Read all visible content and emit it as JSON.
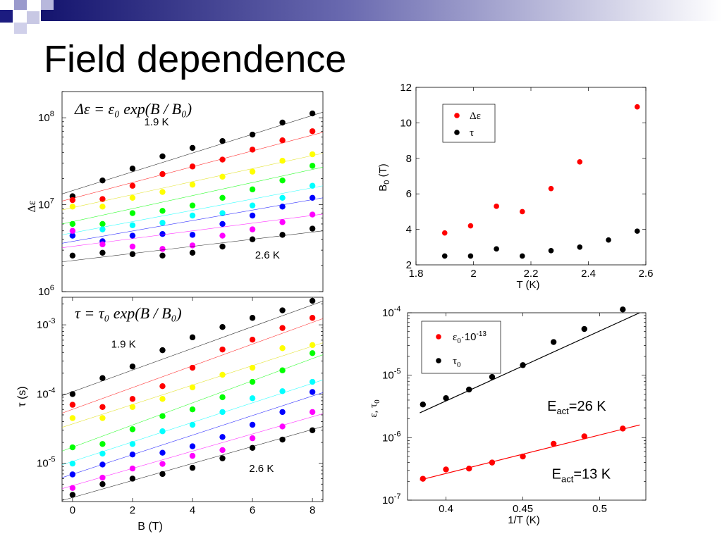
{
  "slide": {
    "title": "Field dependence"
  },
  "colors": [
    "#000000",
    "#ff0000",
    "#ffff00",
    "#00ff00",
    "#00ffff",
    "#0000ff",
    "#ff00ff",
    "#000000"
  ],
  "chart_data": [
    {
      "id": "eps-vs-B",
      "type": "scatter",
      "y_scale": "log",
      "xlim": [
        -0.35,
        8.35
      ],
      "ylim": [
        1000000,
        200000000
      ],
      "x_ticks": [],
      "y_ticks": [
        {
          "value": 100000000,
          "base": "10",
          "exp": "8"
        },
        {
          "value": 10000000,
          "base": "10",
          "exp": "7"
        },
        {
          "value": 1000000,
          "base": "10",
          "exp": "6"
        }
      ],
      "ylabel": "Δε",
      "formula": "Δε = ε₀ exp(B / B₀)",
      "annotations": [
        {
          "text": "1.9 K",
          "x": 2.8,
          "y": 82000000
        },
        {
          "text": "2.6 K",
          "x": 6.5,
          "y": 2400000
        }
      ],
      "x": [
        0,
        1,
        2,
        3,
        4,
        5,
        6,
        7,
        8
      ],
      "series": [
        {
          "color": "#000000",
          "values": [
            12500000,
            19000000,
            26000000,
            36000000,
            45000000,
            54000000,
            64000000,
            88000000,
            112000000
          ],
          "fit": [
            13300000,
            116000000
          ]
        },
        {
          "color": "#ff0000",
          "values": [
            11300000,
            11600000,
            16500000,
            22500000,
            27500000,
            33000000,
            43000000,
            55000000,
            70000000
          ],
          "fit": [
            11000000,
            68000000
          ]
        },
        {
          "color": "#ffff00",
          "values": [
            9500000,
            9500000,
            12000000,
            14000000,
            17000000,
            21000000,
            24000000,
            32000000,
            38000000
          ],
          "fit": [
            8700000,
            39000000
          ]
        },
        {
          "color": "#00ff00",
          "values": [
            6000000,
            6000000,
            8000000,
            8500000,
            9800000,
            12000000,
            15000000,
            19000000,
            28000000
          ],
          "fit": [
            6000000,
            27000000
          ]
        },
        {
          "color": "#00ffff",
          "values": [
            4400000,
            5200000,
            5800000,
            6200000,
            7500000,
            8000000,
            9800000,
            12000000,
            16500000
          ],
          "fit": [
            4500000,
            16500000
          ]
        },
        {
          "color": "#0000ff",
          "values": [
            4400000,
            3800000,
            4400000,
            4600000,
            4500000,
            6000000,
            7500000,
            9500000,
            12000000
          ],
          "fit": [
            3600000,
            12000000
          ]
        },
        {
          "color": "#ff00ff",
          "values": [
            5000000,
            3500000,
            3300000,
            3100000,
            3400000,
            4400000,
            5200000,
            6300000,
            7700000
          ],
          "fit": [
            3200000,
            7800000
          ]
        },
        {
          "color": "#000000",
          "values": [
            2600000,
            2800000,
            2700000,
            2600000,
            2800000,
            3300000,
            4000000,
            4500000,
            5300000
          ],
          "fit": [
            2200000,
            5000000
          ]
        }
      ]
    },
    {
      "id": "tau-vs-B",
      "type": "scatter",
      "y_scale": "log",
      "xlim": [
        -0.35,
        8.35
      ],
      "ylim": [
        2.8e-06,
        0.0025
      ],
      "x_ticks": [
        {
          "value": 0,
          "label": "0"
        },
        {
          "value": 2,
          "label": "2"
        },
        {
          "value": 4,
          "label": "4"
        },
        {
          "value": 6,
          "label": "6"
        },
        {
          "value": 8,
          "label": "8"
        }
      ],
      "y_ticks": [
        {
          "value": 0.001,
          "base": "10",
          "exp": "-3"
        },
        {
          "value": 0.0001,
          "base": "10",
          "exp": "-4"
        },
        {
          "value": 1e-05,
          "base": "10",
          "exp": "-5"
        }
      ],
      "xlabel": "B (T)",
      "ylabel": "τ (s)",
      "formula": "τ = τ₀ exp(B / B₀)",
      "annotations": [
        {
          "text": "1.9 K",
          "x": 1.7,
          "y": 0.00047
        },
        {
          "text": "2.6 K",
          "x": 6.3,
          "y": 7.5e-06
        }
      ],
      "x": [
        0,
        1,
        2,
        3,
        4,
        5,
        6,
        7,
        8
      ],
      "series": [
        {
          "color": "#000000",
          "values": [
            0.0001,
            0.00017,
            0.00025,
            0.00043,
            0.00066,
            0.00093,
            0.00126,
            0.00162,
            0.00222
          ],
          "fit": [
            9.5e-05,
            0.0022
          ]
        },
        {
          "color": "#ff0000",
          "values": [
            7e-05,
            6.5e-05,
            8.5e-05,
            0.00013,
            0.00024,
            0.00044,
            0.00061,
            0.0009,
            0.00126
          ],
          "fit": [
            5.3e-05,
            0.00123
          ]
        },
        {
          "color": "#ffff00",
          "values": [
            4.5e-05,
            4.5e-05,
            6.5e-05,
            8.5e-05,
            0.000125,
            0.00019,
            0.00024,
            0.00046,
            0.00051
          ],
          "fit": [
            3.3e-05,
            0.00055
          ]
        },
        {
          "color": "#00ff00",
          "values": [
            1.7e-05,
            1.9e-05,
            3.1e-05,
            4.8e-05,
            6e-05,
            9e-05,
            0.00015,
            0.00022,
            0.00039
          ],
          "fit": [
            1.5e-05,
            0.00037
          ]
        },
        {
          "color": "#00ffff",
          "values": [
            9.9e-06,
            1.38e-05,
            1.9e-05,
            2.9e-05,
            3.6e-05,
            5.5e-05,
            8.7e-05,
            0.00011,
            0.00015
          ],
          "fit": [
            9.5e-06,
            0.00016
          ]
        },
        {
          "color": "#0000ff",
          "values": [
            6.9e-06,
            9.6e-06,
            1.34e-05,
            1.42e-05,
            1.76e-05,
            2.4e-05,
            3.6e-05,
            5.5e-05,
            0.000107
          ],
          "fit": [
            6.2e-06,
            0.000105
          ]
        },
        {
          "color": "#ff00ff",
          "values": [
            4.4e-06,
            6.2e-06,
            8.4e-06,
            9.8e-06,
            1.28e-05,
            1.55e-05,
            2.3e-05,
            3.4e-05,
            5.5e-05
          ],
          "fit": [
            4.3e-06,
            5.2e-05
          ]
        },
        {
          "color": "#000000",
          "values": [
            3.5e-06,
            5e-06,
            6e-06,
            7e-06,
            8.6e-06,
            1.18e-05,
            1.67e-05,
            2.2e-05,
            3e-05
          ],
          "fit": [
            2.9e-06,
            3.4e-05
          ]
        }
      ]
    },
    {
      "id": "B0-vs-T",
      "type": "scatter",
      "y_scale": "linear",
      "xlim": [
        1.8,
        2.6
      ],
      "ylim": [
        2,
        12
      ],
      "x_ticks": [
        {
          "value": 1.8,
          "label": "1.8"
        },
        {
          "value": 2.0,
          "label": "2"
        },
        {
          "value": 2.2,
          "label": "2.2"
        },
        {
          "value": 2.4,
          "label": "2.4"
        },
        {
          "value": 2.6,
          "label": "2.6"
        }
      ],
      "y_ticks": [
        {
          "value": 2,
          "label": "2"
        },
        {
          "value": 4,
          "label": "4"
        },
        {
          "value": 6,
          "label": "6"
        },
        {
          "value": 8,
          "label": "8"
        },
        {
          "value": 10,
          "label": "10"
        },
        {
          "value": 12,
          "label": "12"
        }
      ],
      "xlabel": "T (K)",
      "ylabel_main": "B",
      "ylabel_sub": "0",
      "ylabel_tail": " (T)",
      "legend": {
        "position": "top-left",
        "entries": [
          {
            "label": "Δε",
            "color": "#ff0000"
          },
          {
            "label": "τ",
            "color": "#000000"
          }
        ]
      },
      "series": [
        {
          "name": "Δε",
          "color": "#ff0000",
          "x": [
            1.9,
            1.99,
            2.08,
            2.17,
            2.27,
            2.37,
            2.57
          ],
          "y": [
            3.8,
            4.2,
            5.3,
            5.0,
            6.3,
            7.8,
            10.9
          ]
        },
        {
          "name": "τ",
          "color": "#000000",
          "x": [
            1.9,
            1.99,
            2.08,
            2.17,
            2.27,
            2.37,
            2.47,
            2.57
          ],
          "y": [
            2.5,
            2.5,
            2.9,
            2.5,
            2.8,
            3.0,
            3.4,
            3.9
          ]
        }
      ]
    },
    {
      "id": "eps0-tau0-vs-invT",
      "type": "scatter",
      "y_scale": "log",
      "xlim": [
        0.375,
        0.53
      ],
      "ylim": [
        1e-07,
        0.0001
      ],
      "x_ticks": [
        {
          "value": 0.4,
          "label": "0.4"
        },
        {
          "value": 0.45,
          "label": "0.45"
        },
        {
          "value": 0.5,
          "label": "0.5"
        }
      ],
      "y_ticks": [
        {
          "value": 0.0001,
          "base": "10",
          "exp": "-4"
        },
        {
          "value": 1e-05,
          "base": "10",
          "exp": "-5"
        },
        {
          "value": 1e-06,
          "base": "10",
          "exp": "-6"
        },
        {
          "value": 1e-07,
          "base": "10",
          "exp": "-7"
        }
      ],
      "xlabel": "1/T (K)",
      "ylabel": "ε, τ",
      "ylabel_sub": "0",
      "legend": {
        "position": "top-left",
        "entries": [
          {
            "label": "ε",
            "sub": "0",
            "tail": "·10",
            "sup": "-13",
            "color": "#ff0000"
          },
          {
            "label": "τ",
            "sub": "0",
            "tail": "",
            "sup": "",
            "color": "#000000"
          }
        ]
      },
      "annotations": [
        {
          "text_main": "E",
          "text_sub": "act",
          "text_tail": "=26 K",
          "x": 0.485,
          "y": 2.7e-06
        },
        {
          "text_main": "E",
          "text_sub": "act",
          "text_tail": "=13 K",
          "x": 0.488,
          "y": 2.2e-07
        }
      ],
      "series": [
        {
          "name": "ε0·10-13",
          "color": "#ff0000",
          "x": [
            0.385,
            0.4,
            0.415,
            0.43,
            0.45,
            0.47,
            0.49,
            0.515
          ],
          "y": [
            2.2e-07,
            3.1e-07,
            3.2e-07,
            4e-07,
            5e-07,
            8e-07,
            1.05e-06,
            1.4e-06
          ],
          "fit": [
            [
              0.383,
              2.1e-07
            ],
            [
              0.526,
              1.6e-06
            ]
          ]
        },
        {
          "name": "τ0",
          "color": "#000000",
          "x": [
            0.385,
            0.4,
            0.415,
            0.43,
            0.45,
            0.47,
            0.49,
            0.515
          ],
          "y": [
            3.4e-06,
            4.3e-06,
            5.9e-06,
            9.4e-06,
            1.45e-05,
            3.4e-05,
            5.5e-05,
            0.000113
          ],
          "fit": [
            [
              0.383,
              2.5e-06
            ],
            [
              0.526,
              0.0001
            ]
          ]
        }
      ]
    }
  ]
}
